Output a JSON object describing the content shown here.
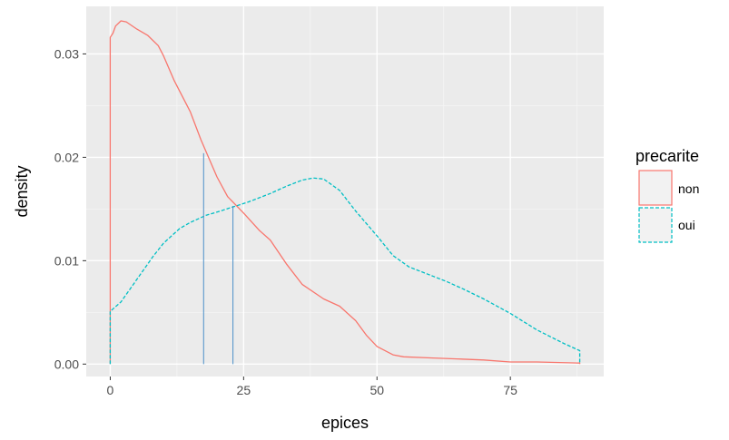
{
  "chart_data": {
    "type": "line",
    "title": "",
    "xlabel": "epices",
    "ylabel": "density",
    "xlim": [
      -4.5,
      92.5
    ],
    "ylim": [
      -0.0012,
      0.0346
    ],
    "x_ticks": [
      0,
      25,
      50,
      75
    ],
    "x_tick_labels": [
      "0",
      "25",
      "50",
      "75"
    ],
    "y_ticks": [
      0.0,
      0.01,
      0.02,
      0.03
    ],
    "y_tick_labels": [
      "0.00",
      "0.01",
      "0.02",
      "0.03"
    ],
    "grid": true,
    "legend": {
      "title": "precarite",
      "position": "right",
      "entries": [
        "non",
        "oui"
      ]
    },
    "series": [
      {
        "name": "non",
        "color": "#F8766D",
        "linestyle": "solid",
        "points": [
          [
            0,
            0.0
          ],
          [
            0,
            0.0316
          ],
          [
            0.5,
            0.032
          ],
          [
            1,
            0.0327
          ],
          [
            2,
            0.0332
          ],
          [
            3,
            0.0331
          ],
          [
            5,
            0.0324
          ],
          [
            7,
            0.0318
          ],
          [
            9,
            0.0308
          ],
          [
            10,
            0.0298
          ],
          [
            12,
            0.0274
          ],
          [
            15,
            0.0244
          ],
          [
            17,
            0.0217
          ],
          [
            20,
            0.0181
          ],
          [
            22,
            0.0162
          ],
          [
            25,
            0.0146
          ],
          [
            28,
            0.0129
          ],
          [
            30,
            0.012
          ],
          [
            33,
            0.0097
          ],
          [
            36,
            0.0077
          ],
          [
            40,
            0.0063
          ],
          [
            43,
            0.0056
          ],
          [
            46,
            0.0042
          ],
          [
            48,
            0.0028
          ],
          [
            50,
            0.0017
          ],
          [
            53,
            0.0009
          ],
          [
            55,
            0.0007
          ],
          [
            60,
            0.0006
          ],
          [
            65,
            0.0005
          ],
          [
            70,
            0.0004
          ],
          [
            75,
            0.0002
          ],
          [
            80,
            0.0002
          ],
          [
            88,
            0.0001
          ],
          [
            88,
            0.0
          ]
        ]
      },
      {
        "name": "oui",
        "color": "#00BFC4",
        "linestyle": "dashed",
        "points": [
          [
            0,
            0.0
          ],
          [
            0,
            0.0051
          ],
          [
            2,
            0.006
          ],
          [
            5,
            0.0082
          ],
          [
            8,
            0.0104
          ],
          [
            10,
            0.0117
          ],
          [
            13,
            0.0131
          ],
          [
            15,
            0.0137
          ],
          [
            18,
            0.0144
          ],
          [
            20,
            0.0147
          ],
          [
            23,
            0.0152
          ],
          [
            26,
            0.0157
          ],
          [
            30,
            0.0165
          ],
          [
            33,
            0.0172
          ],
          [
            36,
            0.0178
          ],
          [
            38,
            0.018
          ],
          [
            40,
            0.0179
          ],
          [
            43,
            0.0168
          ],
          [
            46,
            0.0148
          ],
          [
            50,
            0.0124
          ],
          [
            53,
            0.0105
          ],
          [
            56,
            0.0094
          ],
          [
            60,
            0.0086
          ],
          [
            63,
            0.008
          ],
          [
            66,
            0.0073
          ],
          [
            70,
            0.0063
          ],
          [
            75,
            0.0049
          ],
          [
            80,
            0.0033
          ],
          [
            85,
            0.002
          ],
          [
            88,
            0.0013
          ],
          [
            88,
            0.0
          ]
        ]
      }
    ],
    "reference_lines": [
      {
        "x": 17.5,
        "y": 0.0204,
        "color": "#4A90C8"
      },
      {
        "x": 23,
        "y": 0.0153,
        "color": "#4A90C8"
      }
    ]
  }
}
